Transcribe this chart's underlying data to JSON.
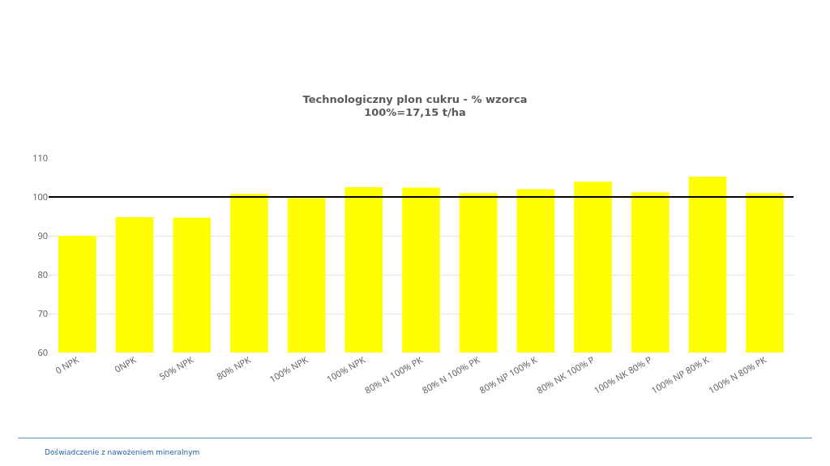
{
  "chart_data": {
    "type": "bar",
    "title": "Technologiczny plon cukru - % wzorca",
    "subtitle": "100%=17,15 t/ha",
    "categories": [
      "0 NPK",
      "0NPK",
      "50% NPK",
      "80% NPK",
      "100% NPK",
      "100% NPK",
      "80% N 100% PK",
      "80% N 100% PK",
      "80% NP 100% K",
      "80% NK 100% P",
      "100% NK 80% P",
      "100% NP 80% K",
      "100% N 80% PK"
    ],
    "values": [
      90.0,
      94.8,
      94.7,
      100.8,
      99.7,
      102.5,
      102.4,
      101.0,
      102.0,
      103.9,
      101.2,
      105.2,
      101.0
    ],
    "color": "#ffff00",
    "ylim": [
      60,
      110
    ],
    "yticks": [
      60,
      70,
      80,
      90,
      100,
      110
    ],
    "grid": "y",
    "ref_lines": [
      {
        "axis": "y",
        "value": 100,
        "color": "#000000"
      }
    ],
    "annotations": [
      "Doświadczenie z nawożeniem mineralnym"
    ]
  }
}
